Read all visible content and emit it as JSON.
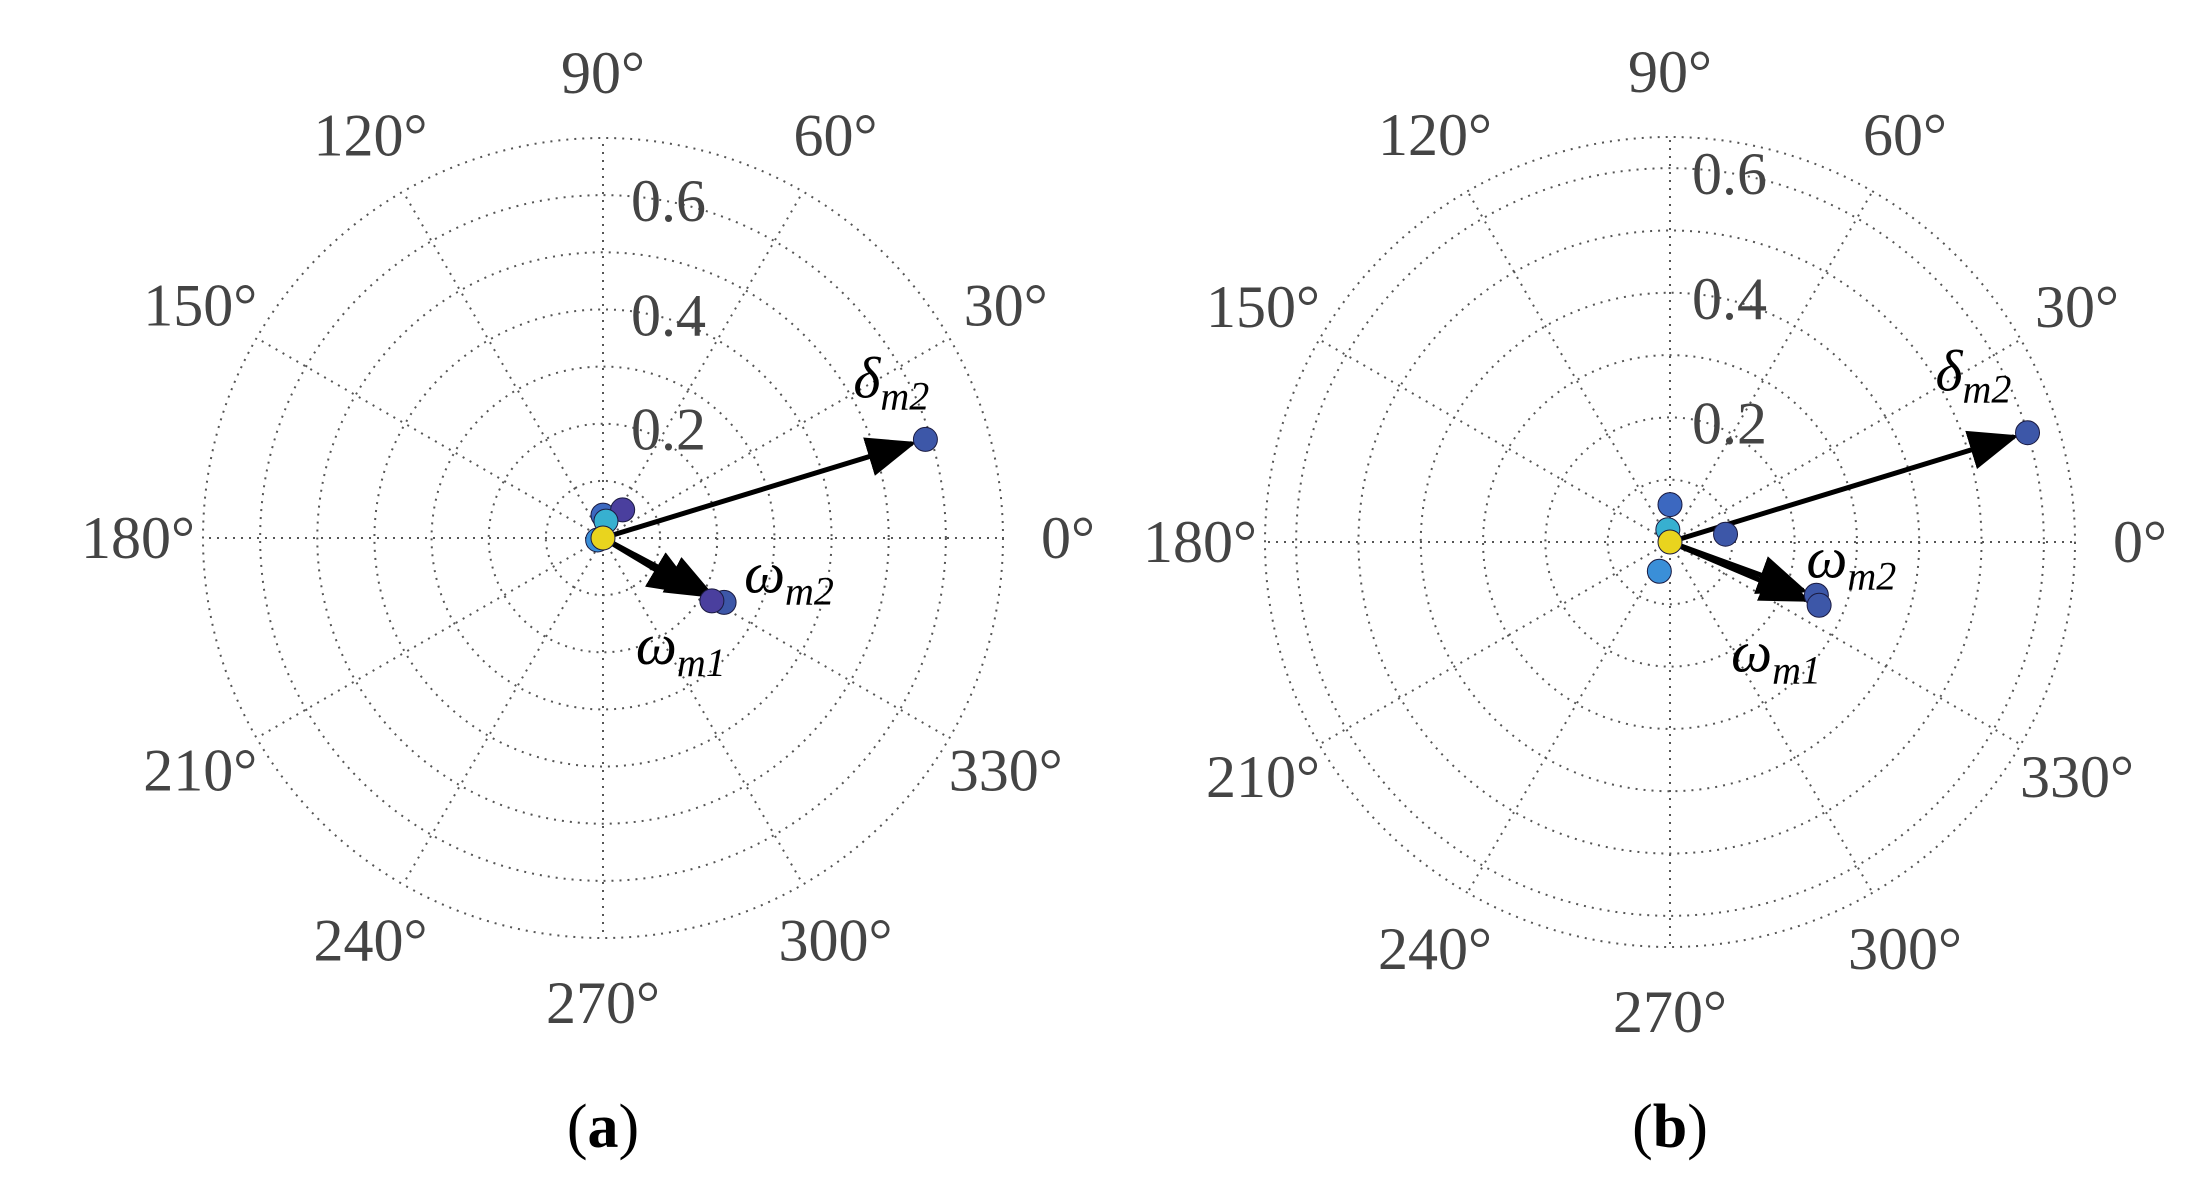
{
  "chart_data": [
    {
      "type": "polar-scatter",
      "panel_label": "a",
      "angle_ticks": [
        "0°",
        "30°",
        "60°",
        "90°",
        "120°",
        "150°",
        "180°",
        "210°",
        "240°",
        "270°",
        "300°",
        "330°"
      ],
      "angle_tick_values": [
        0,
        30,
        60,
        90,
        120,
        150,
        180,
        210,
        240,
        270,
        300,
        330
      ],
      "radial_ticks": [
        "0.2",
        "0.4",
        "0.6"
      ],
      "radial_tick_values": [
        0.2,
        0.4,
        0.6
      ],
      "rmax": 0.7,
      "grid": true,
      "points": [
        {
          "theta": 17,
          "r": 0.59,
          "color": "#3d57a8"
        },
        {
          "theta": -28,
          "r": 0.24,
          "color": "#3d57a8"
        },
        {
          "theta": -30,
          "r": 0.22,
          "color": "#4a3f9e"
        },
        {
          "theta": 90,
          "r": 0.04,
          "color": "#3c68c0"
        },
        {
          "theta": 55,
          "r": 0.06,
          "color": "#4a3f9e"
        },
        {
          "theta": 80,
          "r": 0.03,
          "color": "#37b0d0"
        },
        {
          "theta": 200,
          "r": 0.01,
          "color": "#3a8fd8"
        },
        {
          "theta": 0,
          "r": 0.0,
          "color": "#e9d41e"
        }
      ],
      "vectors": [
        {
          "label": "δ",
          "subscript": "m2",
          "theta": 17,
          "r": 0.59
        },
        {
          "label": "ω",
          "subscript": "m2",
          "theta": -28,
          "r": 0.24
        },
        {
          "label": "ω",
          "subscript": "m1",
          "theta": -31,
          "r": 0.21
        }
      ]
    },
    {
      "type": "polar-scatter",
      "panel_label": "b",
      "angle_ticks": [
        "0°",
        "30°",
        "60°",
        "90°",
        "120°",
        "150°",
        "180°",
        "210°",
        "240°",
        "270°",
        "300°",
        "330°"
      ],
      "angle_tick_values": [
        0,
        30,
        60,
        90,
        120,
        150,
        180,
        210,
        240,
        270,
        300,
        330
      ],
      "radial_ticks": [
        "0.2",
        "0.4",
        "0.6"
      ],
      "radial_tick_values": [
        0.2,
        0.4,
        0.6
      ],
      "rmax": 0.65,
      "grid": true,
      "points": [
        {
          "theta": 17,
          "r": 0.6,
          "color": "#3d57a8"
        },
        {
          "theta": -20,
          "r": 0.25,
          "color": "#3d57a8"
        },
        {
          "theta": -23,
          "r": 0.26,
          "color": "#3d57a8"
        },
        {
          "theta": 90,
          "r": 0.06,
          "color": "#3c68c0"
        },
        {
          "theta": 8,
          "r": 0.09,
          "color": "#3d57a8"
        },
        {
          "theta": 100,
          "r": 0.02,
          "color": "#37b0d0"
        },
        {
          "theta": 250,
          "r": 0.05,
          "color": "#3a8fd8"
        },
        {
          "theta": 0,
          "r": 0.0,
          "color": "#e9d41e"
        }
      ],
      "vectors": [
        {
          "label": "δ",
          "subscript": "m2",
          "theta": 17,
          "r": 0.6
        },
        {
          "label": "ω",
          "subscript": "m2",
          "theta": -20,
          "r": 0.25
        },
        {
          "label": "ω",
          "subscript": "m1",
          "theta": -23,
          "r": 0.26
        }
      ]
    }
  ],
  "panels_text": [
    "(a)",
    "(b)"
  ]
}
